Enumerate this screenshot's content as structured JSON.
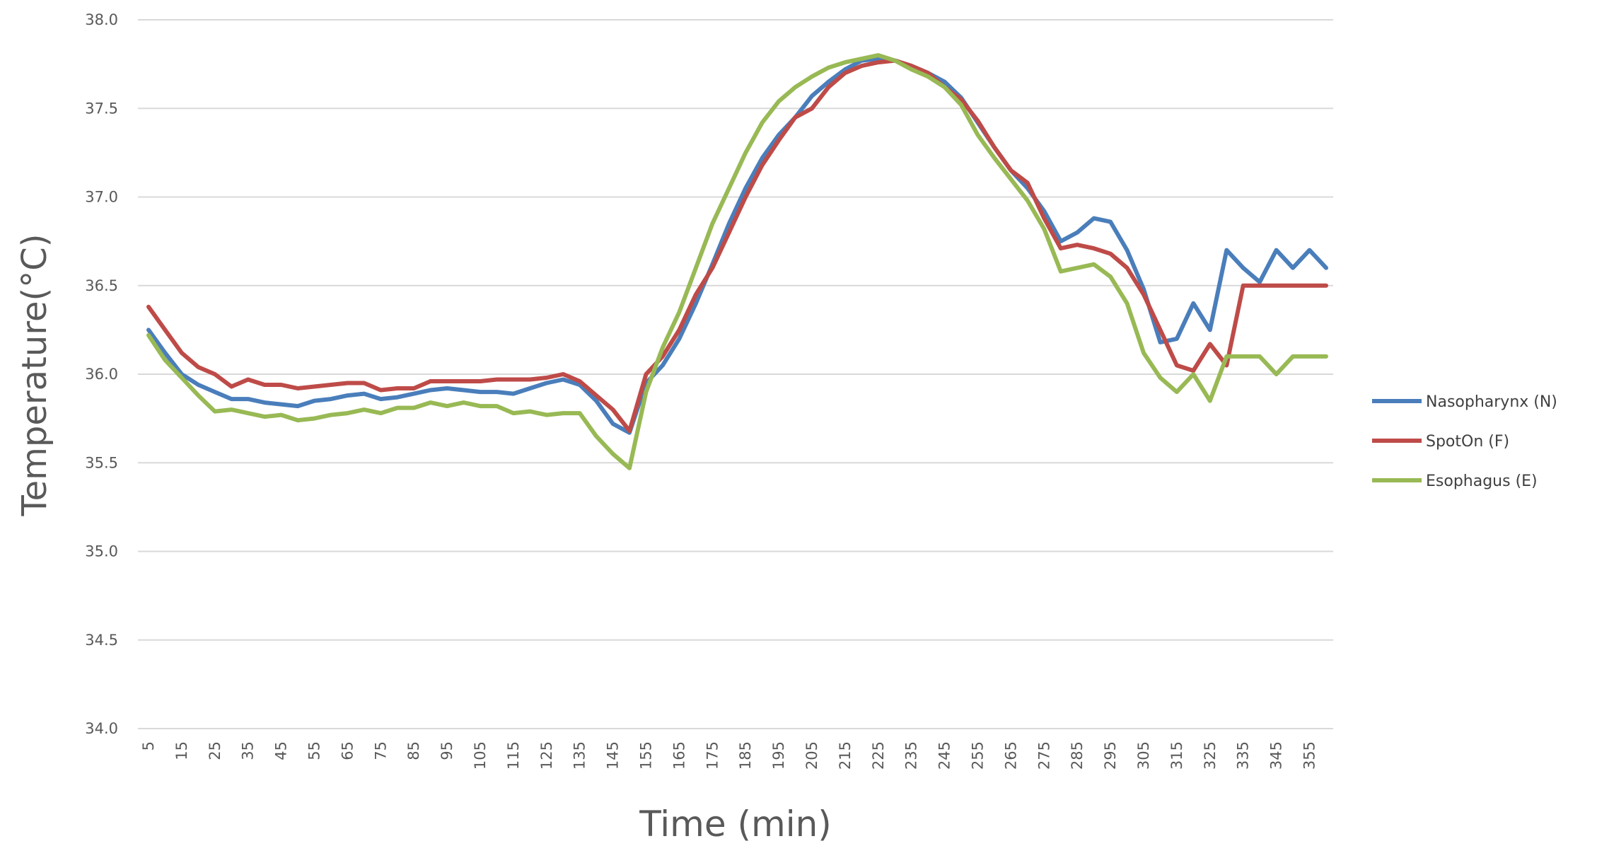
{
  "chart_data": {
    "type": "line",
    "title": "",
    "xlabel": "Time (min)",
    "ylabel": "Temperature(°C)",
    "ylim": [
      34.0,
      38.0
    ],
    "yticks": [
      "34.0",
      "34.5",
      "35.0",
      "35.5",
      "36.0",
      "36.5",
      "37.0",
      "37.5",
      "38.0"
    ],
    "x": [
      5,
      10,
      15,
      20,
      25,
      30,
      35,
      40,
      45,
      50,
      55,
      60,
      65,
      70,
      75,
      80,
      85,
      90,
      95,
      100,
      105,
      110,
      115,
      120,
      125,
      130,
      135,
      140,
      145,
      150,
      155,
      160,
      165,
      170,
      175,
      180,
      185,
      190,
      195,
      200,
      205,
      210,
      215,
      220,
      225,
      230,
      235,
      240,
      245,
      250,
      255,
      260,
      265,
      270,
      275,
      280,
      285,
      290,
      295,
      300,
      305,
      310,
      315,
      320,
      325,
      330,
      335,
      340,
      345,
      350,
      355,
      360
    ],
    "xtick_labels": [
      "5",
      "15",
      "25",
      "35",
      "45",
      "55",
      "65",
      "75",
      "85",
      "95",
      "105",
      "115",
      "125",
      "135",
      "145",
      "155",
      "165",
      "175",
      "185",
      "195",
      "205",
      "215",
      "225",
      "235",
      "245",
      "255",
      "265",
      "275",
      "285",
      "295",
      "305",
      "315",
      "325",
      "335",
      "345",
      "355"
    ],
    "grid": true,
    "legend_position": "right",
    "series": [
      {
        "name": "Nasopharynx (N)",
        "color": "#4a7ebb",
        "values": [
          36.25,
          36.12,
          36.0,
          35.94,
          35.9,
          35.86,
          35.86,
          35.84,
          35.83,
          35.82,
          35.85,
          35.86,
          35.88,
          35.89,
          35.86,
          35.87,
          35.89,
          35.91,
          35.92,
          35.91,
          35.9,
          35.9,
          35.89,
          35.92,
          35.95,
          35.97,
          35.94,
          35.85,
          35.72,
          35.67,
          35.95,
          36.05,
          36.2,
          36.4,
          36.62,
          36.85,
          37.05,
          37.22,
          37.35,
          37.45,
          37.57,
          37.65,
          37.72,
          37.77,
          37.78,
          37.77,
          37.74,
          37.7,
          37.65,
          37.56,
          37.42,
          37.28,
          37.15,
          37.05,
          36.92,
          36.75,
          36.8,
          36.88,
          36.86,
          36.7,
          36.48,
          36.18,
          36.2,
          36.4,
          36.25,
          36.7,
          36.6,
          36.52,
          36.7,
          36.6,
          36.7,
          36.6
        ]
      },
      {
        "name": "SpotOn (F)",
        "color": "#be4b48",
        "values": [
          36.38,
          36.25,
          36.12,
          36.04,
          36.0,
          35.93,
          35.97,
          35.94,
          35.94,
          35.92,
          35.93,
          35.94,
          35.95,
          35.95,
          35.91,
          35.92,
          35.92,
          35.96,
          35.96,
          35.96,
          35.96,
          35.97,
          35.97,
          35.97,
          35.98,
          36.0,
          35.96,
          35.88,
          35.8,
          35.68,
          36.0,
          36.1,
          36.25,
          36.45,
          36.6,
          36.8,
          37.0,
          37.18,
          37.32,
          37.45,
          37.5,
          37.62,
          37.7,
          37.74,
          37.76,
          37.77,
          37.74,
          37.7,
          37.62,
          37.55,
          37.43,
          37.28,
          37.15,
          37.08,
          36.88,
          36.71,
          36.73,
          36.71,
          36.68,
          36.6,
          36.45,
          36.25,
          36.05,
          36.02,
          36.17,
          36.05,
          36.5,
          36.5,
          36.5,
          36.5,
          36.5,
          36.5
        ]
      },
      {
        "name": "Esophagus (E)",
        "color": "#98b954",
        "values": [
          36.22,
          36.08,
          35.98,
          35.88,
          35.79,
          35.8,
          35.78,
          35.76,
          35.77,
          35.74,
          35.75,
          35.77,
          35.78,
          35.8,
          35.78,
          35.81,
          35.81,
          35.84,
          35.82,
          35.84,
          35.82,
          35.82,
          35.78,
          35.79,
          35.77,
          35.78,
          35.78,
          35.65,
          35.55,
          35.47,
          35.9,
          36.15,
          36.35,
          36.6,
          36.85,
          37.05,
          37.25,
          37.42,
          37.54,
          37.62,
          37.68,
          37.73,
          37.76,
          37.78,
          37.8,
          37.77,
          37.72,
          37.68,
          37.62,
          37.52,
          37.35,
          37.22,
          37.1,
          36.98,
          36.82,
          36.58,
          36.6,
          36.62,
          36.55,
          36.4,
          36.12,
          35.98,
          35.9,
          36.0,
          35.85,
          36.1,
          36.1,
          36.1,
          36.0,
          36.1,
          36.1,
          36.1
        ]
      }
    ]
  }
}
